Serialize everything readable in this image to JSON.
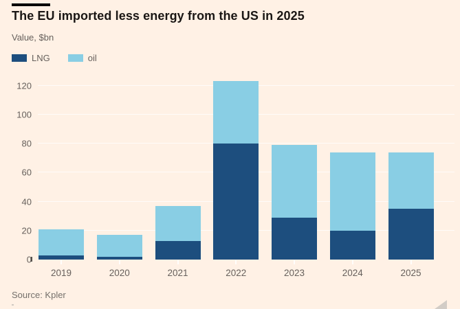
{
  "header": {
    "title": "The EU imported less energy from the US in 2025",
    "subtitle": "Value, $bn"
  },
  "colors": {
    "background": "#FFF1E5",
    "lng": "#1d4e7e",
    "oil": "#89cee4",
    "text_dark": "#1a1614",
    "text_gray": "#66605C",
    "gridline": "rgba(255,255,255,0.75)"
  },
  "chart_data": {
    "type": "bar",
    "stacked": true,
    "title": "The EU imported less energy from the US in 2025",
    "ylabel": "Value, $bn",
    "categories": [
      "2019",
      "2020",
      "2021",
      "2022",
      "2023",
      "2024",
      "2025"
    ],
    "series": [
      {
        "name": "LNG",
        "color": "#1d4e7e",
        "values": [
          3,
          2,
          13,
          80,
          29,
          20,
          35
        ]
      },
      {
        "name": "oil",
        "color": "#89cee4",
        "values": [
          18,
          15,
          24,
          43,
          50,
          54,
          39
        ]
      }
    ],
    "totals": [
      21,
      17,
      37,
      123,
      79,
      74,
      74
    ],
    "y_ticks": [
      0,
      20,
      40,
      60,
      80,
      100,
      120
    ],
    "ylim": [
      0,
      125
    ],
    "grid": "horizontal",
    "legend_position": "top-left"
  },
  "footer": {
    "source": "Source: Kpler"
  }
}
